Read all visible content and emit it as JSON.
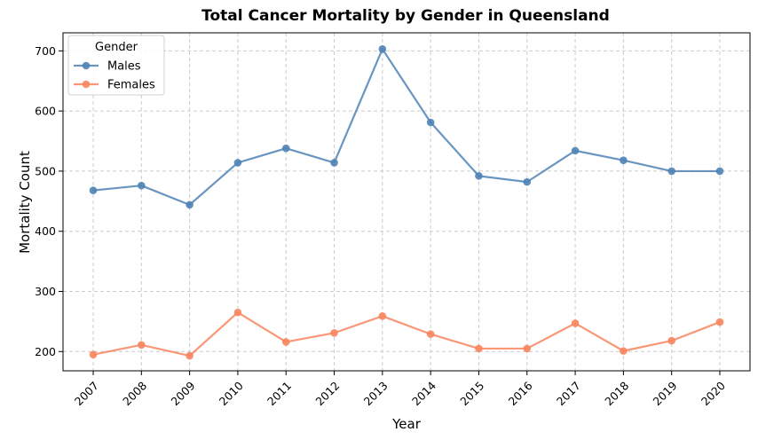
{
  "chart_data": {
    "type": "line",
    "title": "Total Cancer Mortality by Gender in Queensland",
    "xlabel": "Year",
    "ylabel": "Mortality Count",
    "x": [
      "2007",
      "2008",
      "2009",
      "2010",
      "2011",
      "2012",
      "2013",
      "2014",
      "2015",
      "2016",
      "2017",
      "2018",
      "2019",
      "2020"
    ],
    "yticks": [
      200,
      300,
      400,
      500,
      600,
      700
    ],
    "ylim": [
      168,
      730
    ],
    "grid": true,
    "legend": {
      "title": "Gender",
      "placement": "top-left"
    },
    "series": [
      {
        "name": "Males",
        "color": "#4f83b5",
        "values": [
          468,
          476,
          444,
          514,
          538,
          514,
          703,
          581,
          492,
          482,
          534,
          518,
          500,
          500
        ]
      },
      {
        "name": "Females",
        "color": "#f8855e",
        "values": [
          195,
          211,
          193,
          265,
          216,
          231,
          259,
          229,
          205,
          205,
          247,
          201,
          218,
          249
        ]
      }
    ]
  }
}
